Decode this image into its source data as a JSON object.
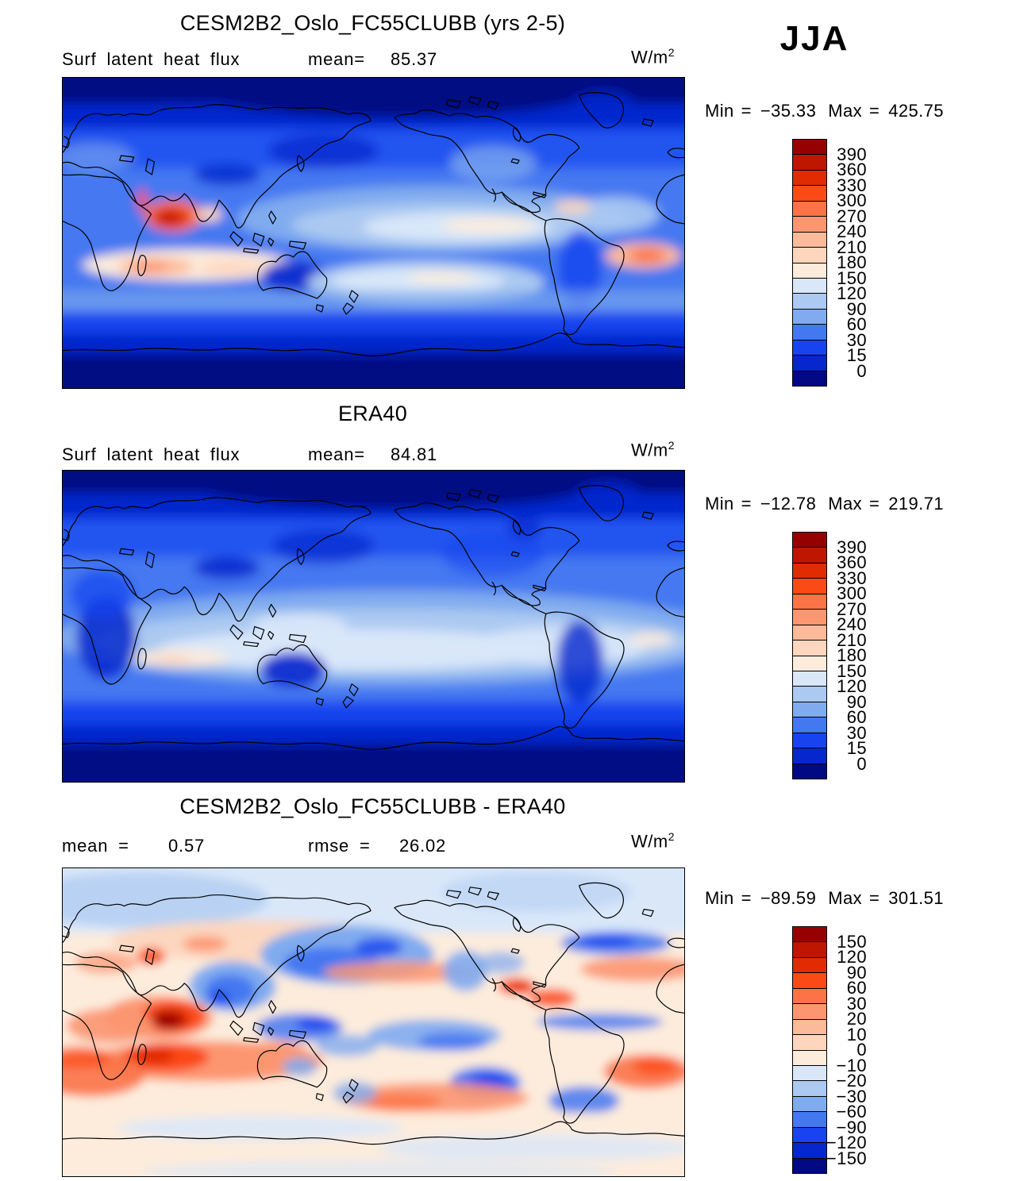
{
  "season_label": "JJA",
  "units": {
    "base": "W/m",
    "exp": "2"
  },
  "labels": {
    "min": "Min",
    "max": "Max",
    "eq": "="
  },
  "palette": [
    "#960000",
    "#bf1600",
    "#e02c00",
    "#fb4a16",
    "#fb7347",
    "#fc9671",
    "#fcba9a",
    "#fdd6bd",
    "#fdecdc",
    "#d9e7f9",
    "#abc9f1",
    "#80abef",
    "#4478f1",
    "#1744ef",
    "#0527cd",
    "#010983"
  ],
  "panels": [
    {
      "title": "CESM2B2_Oslo_FC55CLUBB (yrs 2-5)",
      "var_label": "Surf latent heat flux",
      "mean_label": "mean=",
      "mean": "85.37",
      "min": "−35.33",
      "max": "425.75",
      "colorbar_ticks": [
        "390",
        "360",
        "330",
        "300",
        "270",
        "240",
        "210",
        "180",
        "150",
        "120",
        "90",
        "60",
        "30",
        "15",
        "0"
      ]
    },
    {
      "title": "ERA40",
      "var_label": "Surf latent heat flux",
      "mean_label": "mean=",
      "mean": "84.81",
      "min": "−12.78",
      "max": "219.71",
      "colorbar_ticks": [
        "390",
        "360",
        "330",
        "300",
        "270",
        "240",
        "210",
        "180",
        "150",
        "120",
        "90",
        "60",
        "30",
        "15",
        "0"
      ]
    },
    {
      "title": "CESM2B2_Oslo_FC55CLUBB - ERA40",
      "mean_label": "mean =",
      "mean": "0.57",
      "rmse_label": "rmse =",
      "rmse": "26.02",
      "min": "−89.59",
      "max": "301.51",
      "colorbar_ticks": [
        "150",
        "120",
        "90",
        "60",
        "30",
        "20",
        "10",
        "0",
        "−10",
        "−20",
        "−30",
        "−60",
        "−90",
        "−120",
        "−150"
      ]
    }
  ],
  "chart_data": [
    {
      "type": "heatmap",
      "title": "CESM2B2_Oslo_FC55CLUBB (yrs 2-5)",
      "variable": "Surf latent heat flux",
      "season": "JJA",
      "units": "W/m2",
      "mean": 85.37,
      "min": -35.33,
      "max": 425.75,
      "projection": "global lat-lon world map with coastlines",
      "colorbar_levels": [
        0,
        15,
        30,
        60,
        90,
        120,
        150,
        180,
        210,
        240,
        270,
        300,
        330,
        360,
        390
      ],
      "palette_top_to_bottom": [
        "#960000",
        "#bf1600",
        "#e02c00",
        "#fb4a16",
        "#fb7347",
        "#fc9671",
        "#fcba9a",
        "#fdd6bd",
        "#fdecdc",
        "#d9e7f9",
        "#abc9f1",
        "#80abef",
        "#4478f1",
        "#1744ef",
        "#0527cd",
        "#010983"
      ],
      "pattern_notes": "mostly blue (low flux) at high latitudes and over land; warm red maximum over Arabian Sea; pale/cream bands in subtropical oceans"
    },
    {
      "type": "heatmap",
      "title": "ERA40",
      "variable": "Surf latent heat flux",
      "season": "JJA",
      "units": "W/m2",
      "mean": 84.81,
      "min": -12.78,
      "max": 219.71,
      "projection": "global lat-lon world map with coastlines",
      "colorbar_levels": [
        0,
        15,
        30,
        60,
        90,
        120,
        150,
        180,
        210,
        240,
        270,
        300,
        330,
        360,
        390
      ],
      "palette_top_to_bottom": [
        "#960000",
        "#bf1600",
        "#e02c00",
        "#fb4a16",
        "#fb7347",
        "#fc9671",
        "#fcba9a",
        "#fdd6bd",
        "#fdecdc",
        "#d9e7f9",
        "#abc9f1",
        "#80abef",
        "#4478f1",
        "#1744ef",
        "#0527cd",
        "#010983"
      ],
      "pattern_notes": "smooth blue field, broad pale subtropical bands, faint cream patch in southern Indian Ocean, dark navy polar bands"
    },
    {
      "type": "heatmap",
      "title": "CESM2B2_Oslo_FC55CLUBB - ERA40",
      "variable": "Surf latent heat flux difference",
      "season": "JJA",
      "units": "W/m2",
      "mean": 0.57,
      "rmse": 26.02,
      "min": -89.59,
      "max": 301.51,
      "projection": "global lat-lon world map with coastlines",
      "colorbar_levels": [
        -150,
        -120,
        -90,
        -60,
        -30,
        -20,
        -10,
        0,
        10,
        20,
        30,
        60,
        90,
        120,
        150
      ],
      "palette_top_to_bottom": [
        "#960000",
        "#bf1600",
        "#e02c00",
        "#fb4a16",
        "#fb7347",
        "#fc9671",
        "#fcba9a",
        "#fdd6bd",
        "#fdecdc",
        "#d9e7f9",
        "#abc9f1",
        "#80abef",
        "#4478f1",
        "#1744ef",
        "#0527cd",
        "#010983"
      ],
      "pattern_notes": "pale background; strong dark-red positive bias over Arabian Sea/Middle East and southern Indian Ocean; blue negative bias over North Pacific, India and equatorial oceans"
    }
  ]
}
